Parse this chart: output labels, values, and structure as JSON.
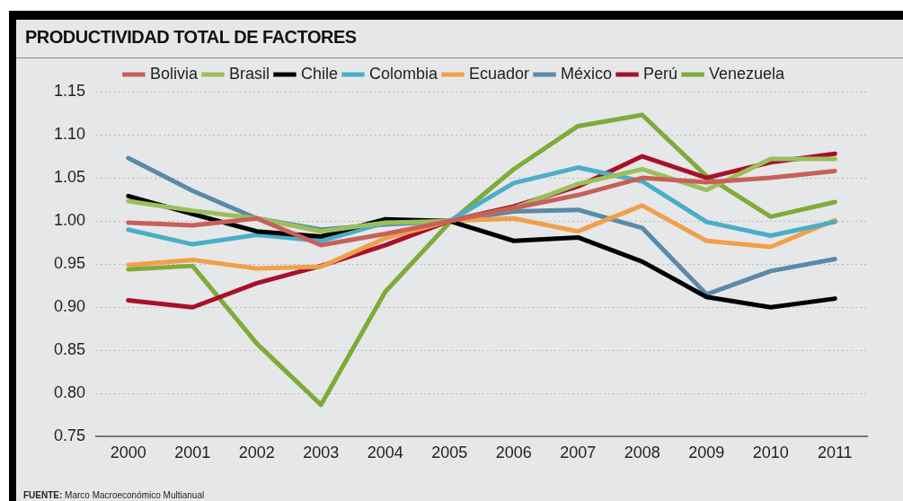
{
  "chart_data": {
    "type": "line",
    "title": "PRODUCTIVIDAD TOTAL DE FACTORES",
    "categories": [
      "2000",
      "2001",
      "2002",
      "2003",
      "2004",
      "2005",
      "2006",
      "2007",
      "2008",
      "2009",
      "2010",
      "2011"
    ],
    "series": [
      {
        "name": "Bolivia",
        "color": "#c8605a",
        "values": [
          0.998,
          0.995,
          1.003,
          0.972,
          0.985,
          1.0,
          1.015,
          1.03,
          1.05,
          1.045,
          1.05,
          1.058
        ]
      },
      {
        "name": "Brasil",
        "color": "#9cbf5a",
        "values": [
          1.023,
          1.012,
          1.003,
          0.988,
          0.998,
          1.0,
          1.015,
          1.043,
          1.06,
          1.036,
          1.072,
          1.072
        ]
      },
      {
        "name": "Chile",
        "color": "#000000",
        "values": [
          1.029,
          1.008,
          0.988,
          0.982,
          1.002,
          1.0,
          0.977,
          0.981,
          0.953,
          0.912,
          0.9,
          0.91
        ]
      },
      {
        "name": "Colombia",
        "color": "#4aaec8",
        "values": [
          0.99,
          0.973,
          0.984,
          0.977,
          0.998,
          1.0,
          1.044,
          1.062,
          1.046,
          0.999,
          0.983,
          0.999
        ]
      },
      {
        "name": "Ecuador",
        "color": "#f0a04a",
        "values": [
          0.949,
          0.955,
          0.945,
          0.947,
          0.98,
          1.0,
          1.003,
          0.988,
          1.018,
          0.977,
          0.97,
          1.001
        ]
      },
      {
        "name": "México",
        "color": "#5a8aa8",
        "values": [
          1.073,
          1.035,
          1.003,
          0.99,
          0.996,
          1.0,
          1.011,
          1.013,
          0.992,
          0.915,
          0.942,
          0.956
        ]
      },
      {
        "name": "Perú",
        "color": "#a8102a",
        "values": [
          0.908,
          0.9,
          0.928,
          0.948,
          0.972,
          1.0,
          1.017,
          1.04,
          1.075,
          1.05,
          1.068,
          1.078
        ]
      },
      {
        "name": "Venezuela",
        "color": "#80aa3a",
        "values": [
          0.944,
          0.948,
          0.858,
          0.787,
          0.918,
          0.998,
          1.06,
          1.11,
          1.123,
          1.052,
          1.005,
          1.022
        ]
      }
    ],
    "ylim": [
      0.75,
      1.15
    ],
    "yticks": [
      {
        "value": 0.75,
        "label": "0.75"
      },
      {
        "value": 0.8,
        "label": "0.80"
      },
      {
        "value": 0.85,
        "label": "0.85"
      },
      {
        "value": 0.9,
        "label": "0.90"
      },
      {
        "value": 0.95,
        "label": "0.95"
      },
      {
        "value": 1.0,
        "label": "1.00"
      },
      {
        "value": 1.05,
        "label": "1.05"
      },
      {
        "value": 1.1,
        "label": "1.10"
      },
      {
        "value": 1.15,
        "label": "1.15"
      }
    ],
    "grid": "y",
    "legend": "top",
    "marker": "none",
    "line_style": "solid",
    "annotations": [
      "FUENTE: Marco Macroeconómico Multianual"
    ]
  }
}
